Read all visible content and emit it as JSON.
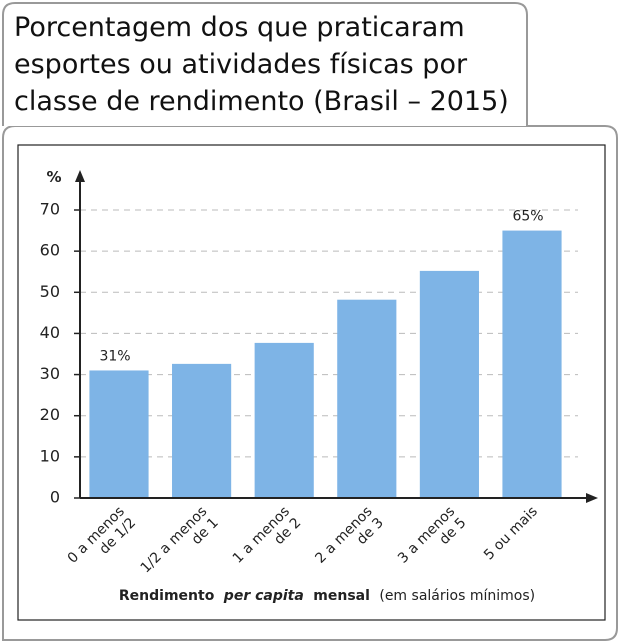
{
  "chart_data": {
    "type": "bar",
    "title": [
      "Porcentagem dos que praticaram",
      "esportes ou atividades físicas por",
      "classe de rendimento (Brasil – 2015)"
    ],
    "y_label": "%",
    "x_label": [
      "Rendimento",
      "per capita",
      "mensal",
      "(em salários mínimos)"
    ],
    "categories": [
      [
        "0 a menos",
        "de 1/2"
      ],
      [
        "1/2 a menos",
        "de 1"
      ],
      [
        "1 a menos",
        "de 2"
      ],
      [
        "2 a menos",
        "de 3"
      ],
      [
        "3 a menos",
        "de 5"
      ],
      [
        "5 ou mais"
      ]
    ],
    "values": [
      31,
      32.6,
      37.7,
      48.2,
      55.2,
      65
    ],
    "value_labels": [
      "31%",
      null,
      null,
      null,
      null,
      "65%"
    ],
    "color": "#7eb4e6",
    "ylim": [
      0,
      70
    ],
    "yticks": [
      0,
      10,
      20,
      30,
      40,
      50,
      60,
      70
    ],
    "grid": true
  }
}
